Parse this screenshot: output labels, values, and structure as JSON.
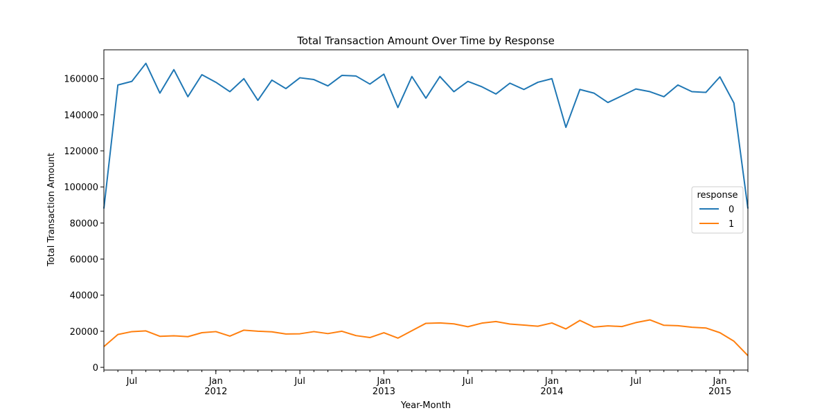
{
  "chart_data": {
    "type": "line",
    "title": "Total Transaction Amount Over Time by Response",
    "xlabel": "Year-Month",
    "ylabel": "Total Transaction Amount",
    "ylim": [
      -1500,
      176000
    ],
    "yticks": [
      0,
      20000,
      40000,
      60000,
      80000,
      100000,
      120000,
      140000,
      160000
    ],
    "grid": false,
    "x": [
      "2011-05",
      "2011-06",
      "2011-07",
      "2011-08",
      "2011-09",
      "2011-10",
      "2011-11",
      "2011-12",
      "2012-01",
      "2012-02",
      "2012-03",
      "2012-04",
      "2012-05",
      "2012-06",
      "2012-07",
      "2012-08",
      "2012-09",
      "2012-10",
      "2012-11",
      "2012-12",
      "2013-01",
      "2013-02",
      "2013-03",
      "2013-04",
      "2013-05",
      "2013-06",
      "2013-07",
      "2013-08",
      "2013-09",
      "2013-10",
      "2013-11",
      "2013-12",
      "2014-01",
      "2014-02",
      "2014-03",
      "2014-04",
      "2014-05",
      "2014-06",
      "2014-07",
      "2014-08",
      "2014-09",
      "2014-10",
      "2014-11",
      "2014-12",
      "2015-01",
      "2015-02",
      "2015-03"
    ],
    "xticks_major": [
      {
        "date": "2011-07",
        "label": "Jul",
        "year": ""
      },
      {
        "date": "2012-01",
        "label": "Jan",
        "year": "2012"
      },
      {
        "date": "2012-07",
        "label": "Jul",
        "year": ""
      },
      {
        "date": "2013-01",
        "label": "Jan",
        "year": "2013"
      },
      {
        "date": "2013-07",
        "label": "Jul",
        "year": ""
      },
      {
        "date": "2014-01",
        "label": "Jan",
        "year": "2014"
      },
      {
        "date": "2014-07",
        "label": "Jul",
        "year": ""
      },
      {
        "date": "2015-01",
        "label": "Jan",
        "year": "2015"
      }
    ],
    "series": [
      {
        "name": "0",
        "color": "#1f77b4",
        "values": [
          88000,
          156500,
          158500,
          168500,
          152000,
          165000,
          150000,
          162200,
          158000,
          152800,
          160000,
          148000,
          159200,
          154500,
          160500,
          159500,
          156000,
          161800,
          161500,
          157000,
          162500,
          144000,
          161200,
          149200,
          161200,
          152800,
          158500,
          155500,
          151500,
          157500,
          154000,
          158000,
          160000,
          133000,
          154000,
          152000,
          146800,
          150500,
          154300,
          152800,
          150000,
          156500,
          152800,
          152400,
          161000,
          146500,
          88000
        ]
      },
      {
        "name": "1",
        "color": "#ff7f0e",
        "values": [
          11500,
          18200,
          19800,
          20200,
          17200,
          17500,
          17000,
          19200,
          19800,
          17300,
          20600,
          20000,
          19700,
          18500,
          18600,
          19800,
          18700,
          20000,
          17600,
          16500,
          19200,
          16200,
          20300,
          24400,
          24600,
          24100,
          22500,
          24500,
          25400,
          24000,
          23400,
          22800,
          24600,
          21300,
          26000,
          22300,
          23000,
          22600,
          24800,
          26300,
          23300,
          23100,
          22200,
          21800,
          19200,
          14500,
          6500
        ]
      }
    ],
    "legend": {
      "title": "response",
      "placement": "center-right"
    }
  }
}
